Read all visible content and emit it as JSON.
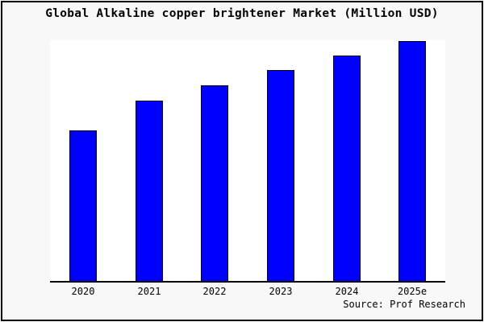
{
  "chart_data": {
    "type": "bar",
    "title": "Global Alkaline copper brightener Market (Million USD)",
    "categories": [
      "2020",
      "2021",
      "2022",
      "2023",
      "2024",
      "2025e"
    ],
    "values": [
      187,
      224,
      243,
      262,
      280,
      298
    ],
    "values_normalized_to_max": [
      0.63,
      0.75,
      0.82,
      0.88,
      0.94,
      1.0
    ],
    "value_note": "y-axis shows no tick labels or gridlines; values are relative bar magnitudes read from pixel heights",
    "xlabel": "",
    "ylabel": "",
    "ylim": [
      0,
      299
    ],
    "grid": false,
    "legend": "none",
    "source": "Source: Prof Research",
    "colors": {
      "bar_fill": "#0000ff",
      "bar_edge": "#000000",
      "plot_background": "#ffffff",
      "page_background": "#f8f8f8",
      "frame_border": "#000000",
      "text": "#000000"
    }
  }
}
